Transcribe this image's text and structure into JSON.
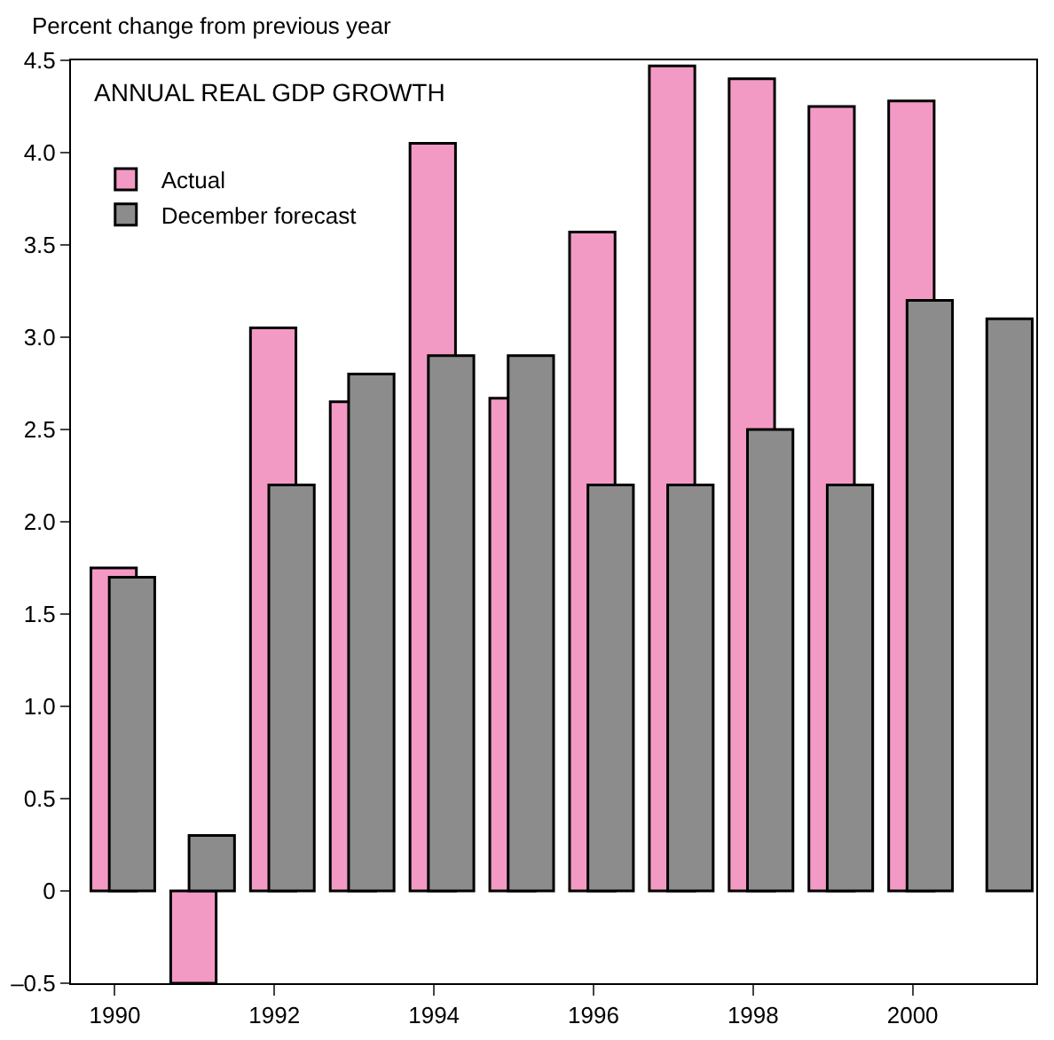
{
  "chart_data": {
    "type": "bar",
    "title": "ANNUAL REAL GDP GROWTH",
    "ylabel": "Percent change from previous year",
    "categories": [
      "1990",
      null,
      "1992",
      null,
      "1994",
      null,
      "1996",
      null,
      "1998",
      null,
      "2000",
      null
    ],
    "series": [
      {
        "name": "Actual",
        "color": "#f39ac4",
        "values": [
          1.75,
          -0.5,
          3.05,
          2.65,
          4.05,
          2.67,
          3.57,
          4.47,
          4.4,
          4.25,
          4.28,
          null
        ]
      },
      {
        "name": "December forecast",
        "color": "#8c8c8c",
        "values": [
          1.7,
          0.3,
          2.2,
          2.8,
          2.9,
          2.9,
          2.2,
          2.2,
          2.5,
          2.2,
          3.2,
          3.1
        ]
      }
    ],
    "ylim": [
      -0.5,
      4.5
    ],
    "yticks": [
      {
        "value": -0.5,
        "label": "–0.5"
      },
      0,
      0.5,
      {
        "value": 1,
        "label": "1.0"
      },
      1.5,
      {
        "value": 2,
        "label": "2.0"
      },
      2.5,
      {
        "value": 3,
        "label": "3.0"
      },
      3.5,
      {
        "value": 4,
        "label": "4.0"
      },
      4.5
    ],
    "grid": false,
    "legend": "top left"
  }
}
